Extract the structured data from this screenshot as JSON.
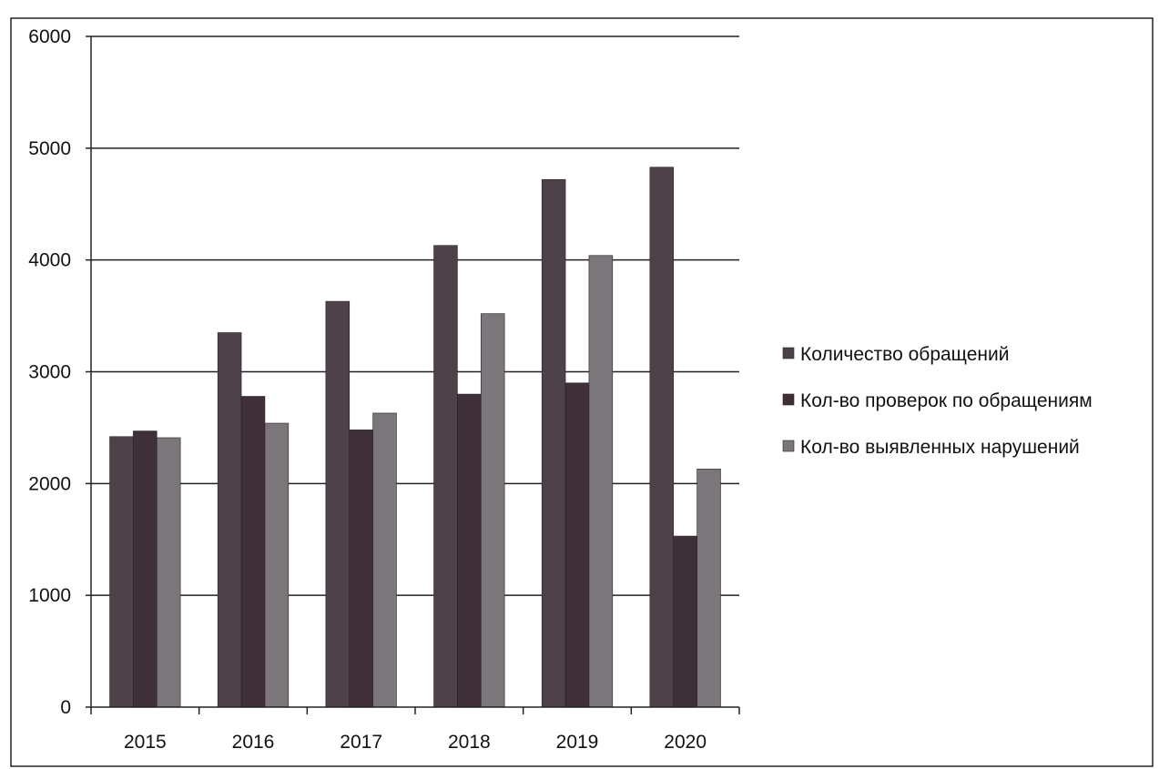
{
  "chart_data": {
    "type": "bar",
    "title": "",
    "xlabel": "",
    "ylabel": "",
    "categories": [
      "2015",
      "2016",
      "2017",
      "2018",
      "2019",
      "2020"
    ],
    "series": [
      {
        "name": "Количество обращений",
        "values": [
          2420,
          3350,
          3630,
          4130,
          4720,
          4830
        ],
        "color": "#4d4249"
      },
      {
        "name": "Кол-во проверок по обращениям",
        "values": [
          2470,
          2780,
          2480,
          2800,
          2900,
          1530
        ],
        "color": "#3e2f38"
      },
      {
        "name": "Кол-во выявленных нарушений",
        "values": [
          2410,
          2540,
          2630,
          3520,
          4040,
          2130
        ],
        "color": "#7b7679"
      }
    ],
    "ylim": [
      0,
      6000
    ],
    "yticks": [
      0,
      1000,
      2000,
      3000,
      4000,
      5000,
      6000
    ],
    "y_tick_labels": [
      "0",
      "1000",
      "2000",
      "3000",
      "4000",
      "5000",
      "6000"
    ],
    "grid": true,
    "legend_position": "right"
  }
}
